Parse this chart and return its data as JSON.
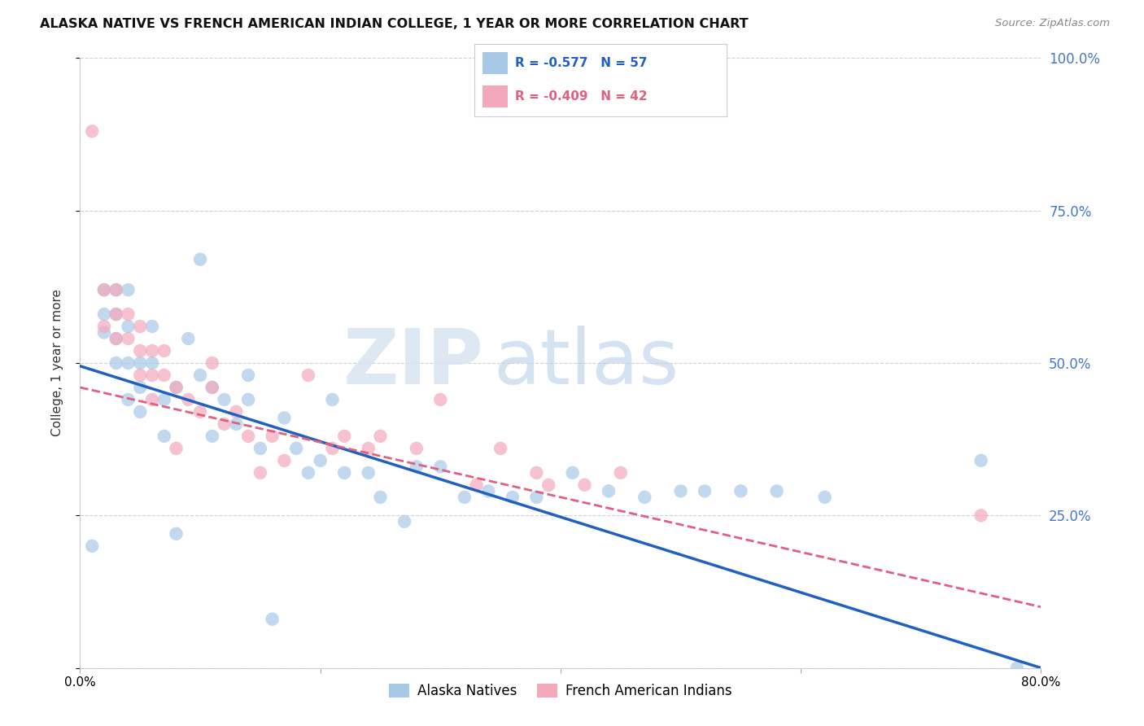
{
  "title": "ALASKA NATIVE VS FRENCH AMERICAN INDIAN COLLEGE, 1 YEAR OR MORE CORRELATION CHART",
  "source": "Source: ZipAtlas.com",
  "ylabel": "College, 1 year or more",
  "legend_label_1": "Alaska Natives",
  "legend_label_2": "French American Indians",
  "R1": -0.577,
  "N1": 57,
  "R2": -0.409,
  "N2": 42,
  "color1": "#a8c8e8",
  "color2": "#f4a8bc",
  "line_color1": "#2060c0",
  "line_color2": "#e06080",
  "xlim": [
    0.0,
    0.8
  ],
  "ylim": [
    0.0,
    1.0
  ],
  "xticks": [
    0.0,
    0.2,
    0.4,
    0.6,
    0.8
  ],
  "yticks": [
    0.0,
    0.25,
    0.5,
    0.75,
    1.0
  ],
  "ytick_labels_right": [
    "",
    "25.0%",
    "50.0%",
    "75.0%",
    "100.0%"
  ],
  "background_color": "#ffffff",
  "grid_color": "#d0d0d0",
  "scatter1_x": [
    0.01,
    0.02,
    0.02,
    0.02,
    0.03,
    0.03,
    0.03,
    0.03,
    0.04,
    0.04,
    0.04,
    0.04,
    0.05,
    0.05,
    0.05,
    0.06,
    0.06,
    0.07,
    0.07,
    0.08,
    0.08,
    0.09,
    0.1,
    0.1,
    0.11,
    0.11,
    0.12,
    0.13,
    0.14,
    0.14,
    0.15,
    0.16,
    0.17,
    0.18,
    0.19,
    0.2,
    0.21,
    0.22,
    0.24,
    0.25,
    0.27,
    0.28,
    0.3,
    0.32,
    0.34,
    0.36,
    0.38,
    0.41,
    0.44,
    0.47,
    0.5,
    0.52,
    0.55,
    0.58,
    0.62,
    0.75,
    0.78
  ],
  "scatter1_y": [
    0.2,
    0.58,
    0.62,
    0.55,
    0.62,
    0.58,
    0.54,
    0.5,
    0.62,
    0.56,
    0.5,
    0.44,
    0.5,
    0.46,
    0.42,
    0.56,
    0.5,
    0.44,
    0.38,
    0.46,
    0.22,
    0.54,
    0.67,
    0.48,
    0.46,
    0.38,
    0.44,
    0.4,
    0.44,
    0.48,
    0.36,
    0.08,
    0.41,
    0.36,
    0.32,
    0.34,
    0.44,
    0.32,
    0.32,
    0.28,
    0.24,
    0.33,
    0.33,
    0.28,
    0.29,
    0.28,
    0.28,
    0.32,
    0.29,
    0.28,
    0.29,
    0.29,
    0.29,
    0.29,
    0.28,
    0.34,
    0.0
  ],
  "scatter2_x": [
    0.01,
    0.02,
    0.02,
    0.03,
    0.03,
    0.03,
    0.04,
    0.04,
    0.05,
    0.05,
    0.05,
    0.06,
    0.06,
    0.06,
    0.07,
    0.07,
    0.08,
    0.08,
    0.09,
    0.1,
    0.11,
    0.11,
    0.12,
    0.13,
    0.14,
    0.15,
    0.16,
    0.17,
    0.19,
    0.21,
    0.22,
    0.24,
    0.25,
    0.28,
    0.3,
    0.33,
    0.35,
    0.38,
    0.39,
    0.42,
    0.45,
    0.75
  ],
  "scatter2_y": [
    0.88,
    0.56,
    0.62,
    0.62,
    0.58,
    0.54,
    0.58,
    0.54,
    0.56,
    0.52,
    0.48,
    0.52,
    0.48,
    0.44,
    0.52,
    0.48,
    0.46,
    0.36,
    0.44,
    0.42,
    0.5,
    0.46,
    0.4,
    0.42,
    0.38,
    0.32,
    0.38,
    0.34,
    0.48,
    0.36,
    0.38,
    0.36,
    0.38,
    0.36,
    0.44,
    0.3,
    0.36,
    0.32,
    0.3,
    0.3,
    0.32,
    0.25
  ],
  "line1_x0": 0.0,
  "line1_y0": 0.495,
  "line1_x1": 0.8,
  "line1_y1": 0.0,
  "line2_x0": 0.0,
  "line2_y0": 0.46,
  "line2_x1": 0.8,
  "line2_y1": 0.1
}
